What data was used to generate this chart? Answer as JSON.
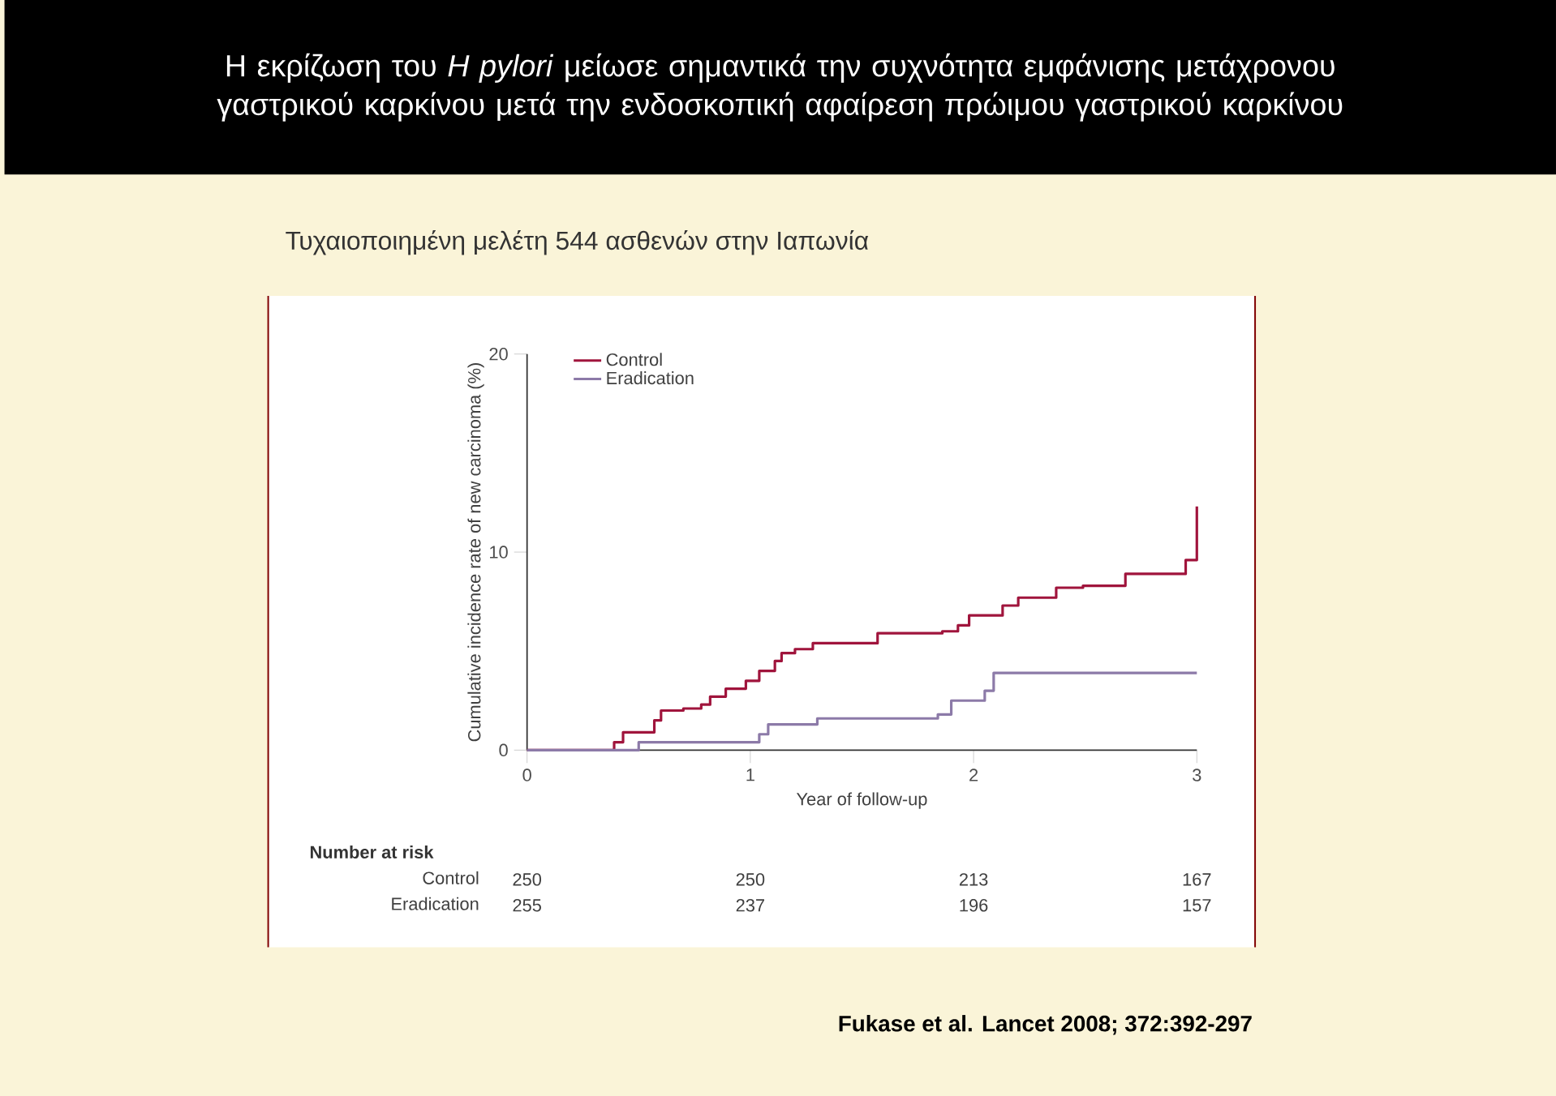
{
  "chart_data": {
    "type": "step",
    "title": "Η εκρίζωση του *H pylori* μείωσε σημαντικά την συχνότητα εμφάνισης μετάχρονου γαστρικού καρκίνου μετά την ενδοσκοπική αφαίρεση πρώιμου γαστρικού καρκίνου",
    "subtitle": "Τυχαιοποιημένη μελέτη 544 ασθενών στην Ιαπωνία",
    "xlabel": "Year of follow-up",
    "ylabel": "Cumulative incidence rate of new carcinoma (%)",
    "xlim": [
      0,
      3
    ],
    "ylim": [
      0,
      20
    ],
    "xticks": [
      0,
      1,
      2,
      3
    ],
    "yticks": [
      0,
      10,
      20
    ],
    "legend": "top left",
    "series": [
      {
        "name": "Control",
        "color": "#a0143c",
        "x": [
          0,
          0.39,
          0.43,
          0.57,
          0.6,
          0.7,
          0.78,
          0.82,
          0.89,
          0.98,
          1.04,
          1.11,
          1.14,
          1.2,
          1.28,
          1.57,
          1.86,
          1.93,
          1.98,
          2.13,
          2.2,
          2.37,
          2.49,
          2.68,
          2.95,
          3.0
        ],
        "values": [
          0,
          0.4,
          0.9,
          1.5,
          2.0,
          2.1,
          2.3,
          2.7,
          3.1,
          3.5,
          4.0,
          4.5,
          4.9,
          5.1,
          5.4,
          5.9,
          6.0,
          6.3,
          6.8,
          7.3,
          7.7,
          8.2,
          8.3,
          8.9,
          9.6,
          12.3
        ]
      },
      {
        "name": "Eradication",
        "color": "#8c7aa8",
        "x": [
          0,
          0.5,
          1.04,
          1.08,
          1.3,
          1.84,
          1.9,
          2.05,
          2.09,
          3.0
        ],
        "values": [
          0,
          0.4,
          0.8,
          1.3,
          1.6,
          1.8,
          2.5,
          3.0,
          3.9,
          3.9
        ]
      }
    ],
    "annotations": [
      "Number at risk",
      "Control",
      "Eradication",
      "250",
      "250",
      "213",
      "167",
      "255",
      "237",
      "196",
      "157",
      "Fukase et al. Lancet 2008; 372:392-297"
    ]
  }
}
